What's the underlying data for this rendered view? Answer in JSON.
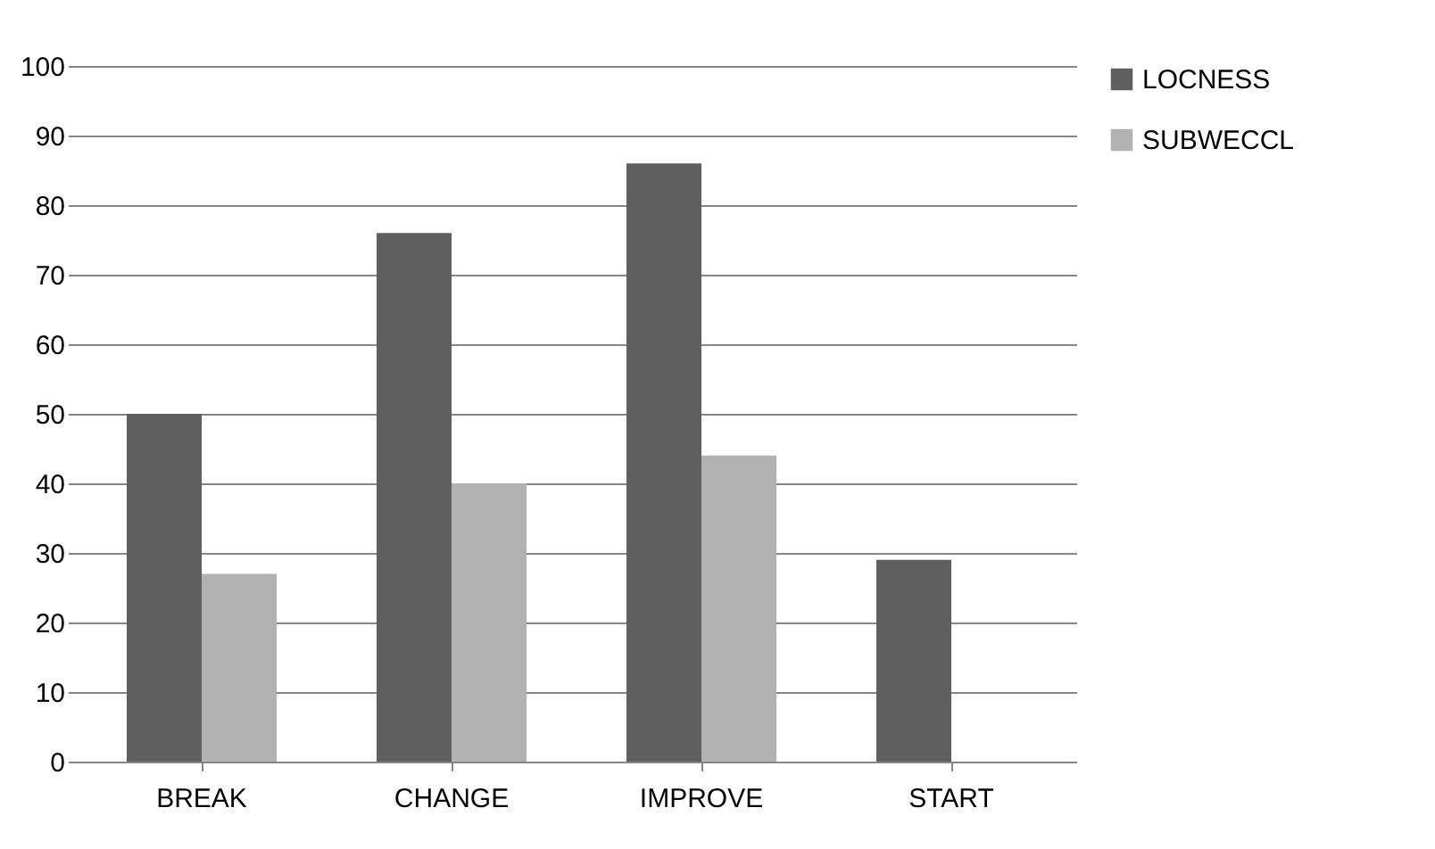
{
  "chart_data": {
    "type": "bar",
    "categories": [
      "BREAK",
      "CHANGE",
      "IMPROVE",
      "START"
    ],
    "series": [
      {
        "name": "LOCNESS",
        "color": "#5f5f5f",
        "values": [
          50,
          76,
          86,
          29
        ]
      },
      {
        "name": "SUBWECCL",
        "color": "#b2b2b2",
        "values": [
          27,
          40,
          44,
          null
        ]
      }
    ],
    "ylim": [
      0,
      100
    ],
    "yticks": [
      0,
      10,
      20,
      30,
      40,
      50,
      60,
      70,
      80,
      90,
      100
    ],
    "grid": "y",
    "legend": "right"
  }
}
